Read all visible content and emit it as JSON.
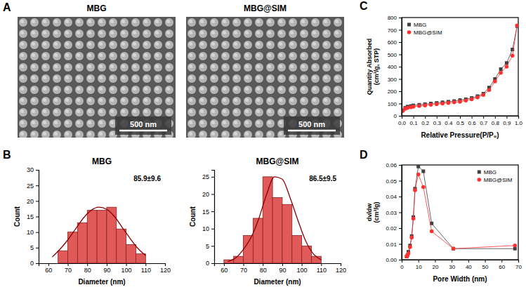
{
  "chart_data": [
    {
      "type": "image",
      "panel_label": "A",
      "title": "MBG",
      "scale_bar": "500 nm"
    },
    {
      "type": "image",
      "title": "MBG@SIM",
      "scale_bar": "500 nm"
    },
    {
      "type": "histogram",
      "panel_label": "B",
      "title": "MBG",
      "annotation": "85.9±9.6",
      "x_label": "Diameter (nm)",
      "y_label": "Count",
      "bins": [
        65,
        70,
        75,
        80,
        85,
        90,
        95,
        100,
        105,
        110
      ],
      "values": [
        4,
        10,
        13,
        17,
        17,
        18,
        11,
        6,
        3
      ],
      "color": "#e05a5a",
      "fit_curve": {
        "color": "#8b0000",
        "x": [
          62,
          66,
          70,
          74,
          78,
          82,
          86,
          90,
          94,
          98,
          102,
          106,
          110
        ],
        "values": [
          2,
          4.5,
          7.5,
          11,
          14.5,
          17,
          18,
          17.3,
          15,
          11.5,
          8,
          4.8,
          2.5
        ]
      },
      "xlim": [
        55,
        120
      ],
      "xticks": [
        60,
        70,
        80,
        90,
        100,
        110,
        120
      ],
      "ylim": [
        0,
        30
      ],
      "yticks": [
        0,
        5,
        10,
        15,
        20,
        25,
        30
      ],
      "grid": false
    },
    {
      "type": "histogram",
      "title": "MBG@SIM",
      "annotation": "86.5±9.5",
      "x_label": "Diameter (nm)",
      "y_label": "Count",
      "bins": [
        60,
        65,
        70,
        75,
        80,
        85,
        90,
        95,
        100,
        105,
        110
      ],
      "values": [
        1,
        2,
        8,
        13,
        25,
        19,
        17,
        8,
        5,
        2
      ],
      "color": "#e05a5a",
      "fit_curve": {
        "color": "#8b0000",
        "x": [
          62,
          66,
          70,
          74,
          78,
          82,
          86,
          90,
          94,
          98,
          102,
          106,
          110
        ],
        "values": [
          0.5,
          1.5,
          4,
          7.5,
          13,
          20,
          25,
          24.3,
          19,
          12.5,
          6.5,
          2.7,
          1
        ]
      },
      "xlim": [
        55,
        120
      ],
      "xticks": [
        60,
        70,
        80,
        90,
        100,
        110,
        120
      ],
      "ylim": [
        0,
        27
      ],
      "yticks": [
        0,
        5,
        10,
        15,
        20,
        25
      ],
      "grid": false
    },
    {
      "type": "line",
      "panel_label": "C",
      "x_label": "Relative Pressure(P/P₀)",
      "y_label": "Quantity Absorbed (cm³/g, STP)",
      "x": [
        0.01,
        0.03,
        0.05,
        0.08,
        0.1,
        0.15,
        0.2,
        0.25,
        0.3,
        0.35,
        0.4,
        0.45,
        0.5,
        0.55,
        0.6,
        0.65,
        0.7,
        0.75,
        0.8,
        0.85,
        0.9,
        0.95,
        0.99
      ],
      "series": [
        {
          "name": "MBG",
          "color": "#404040",
          "marker": "square",
          "line_style": "solid",
          "values": [
            45,
            65,
            75,
            80,
            85,
            90,
            95,
            100,
            105,
            110,
            115,
            120,
            128,
            135,
            145,
            160,
            180,
            230,
            300,
            380,
            430,
            540,
            730
          ]
        },
        {
          "name": "MBG@SIM",
          "color": "#ff3030",
          "marker": "circle",
          "line_style": "solid",
          "values": [
            40,
            58,
            65,
            70,
            75,
            80,
            85,
            90,
            95,
            100,
            105,
            110,
            115,
            125,
            135,
            150,
            170,
            210,
            280,
            350,
            400,
            490,
            735
          ]
        }
      ],
      "xlim": [
        0,
        1
      ],
      "xticks": [
        {
          "value": 0,
          "label": "0.0"
        },
        {
          "value": 0.1,
          "label": "0.1"
        },
        {
          "value": 0.2,
          "label": "0.2"
        },
        {
          "value": 0.3,
          "label": "0.3"
        },
        {
          "value": 0.4,
          "label": "0.4"
        },
        {
          "value": 0.5,
          "label": "0.5"
        },
        {
          "value": 0.6,
          "label": "0.6"
        },
        {
          "value": 0.7,
          "label": "0.7"
        },
        {
          "value": 0.8,
          "label": "0.8"
        },
        {
          "value": 0.9,
          "label": "0.9"
        },
        {
          "value": 1,
          "label": "1.0"
        }
      ],
      "ylim": [
        0,
        800
      ],
      "yticks": [
        0,
        100,
        200,
        300,
        400,
        500,
        600,
        700,
        800
      ],
      "legend": "top-left",
      "grid": false
    },
    {
      "type": "line",
      "panel_label": "D",
      "x_label": "Pore Width (nm)",
      "y_label": "dv/dw (cm³/g)",
      "x": [
        3,
        3.5,
        4,
        5,
        6,
        7,
        8,
        10,
        13,
        18,
        31,
        68
      ],
      "series": [
        {
          "name": "MBG",
          "color": "#404040",
          "marker": "square",
          "line_style": "solid",
          "values": [
            0.002,
            0.003,
            0.005,
            0.009,
            0.015,
            0.027,
            0.045,
            0.059,
            0.056,
            0.023,
            0.007,
            0.007
          ]
        },
        {
          "name": "MBG@SIM",
          "color": "#ff3030",
          "marker": "circle",
          "line_style": "solid",
          "values": [
            0.002,
            0.003,
            0.004,
            0.008,
            0.014,
            0.026,
            0.044,
            0.054,
            0.046,
            0.018,
            0.007,
            0.009
          ]
        }
      ],
      "xlim": [
        0,
        70
      ],
      "xticks": [
        0,
        10,
        20,
        30,
        40,
        50,
        60,
        70
      ],
      "ylim": [
        0,
        0.06
      ],
      "yticks": [
        {
          "value": 0,
          "label": "0.00"
        },
        {
          "value": 0.01,
          "label": "0.01"
        },
        {
          "value": 0.02,
          "label": "0.02"
        },
        {
          "value": 0.03,
          "label": "0.03"
        },
        {
          "value": 0.04,
          "label": "0.04"
        },
        {
          "value": 0.05,
          "label": "0.05"
        },
        {
          "value": 0.06,
          "label": "0.06"
        }
      ],
      "legend": "top-right",
      "grid": false
    }
  ]
}
